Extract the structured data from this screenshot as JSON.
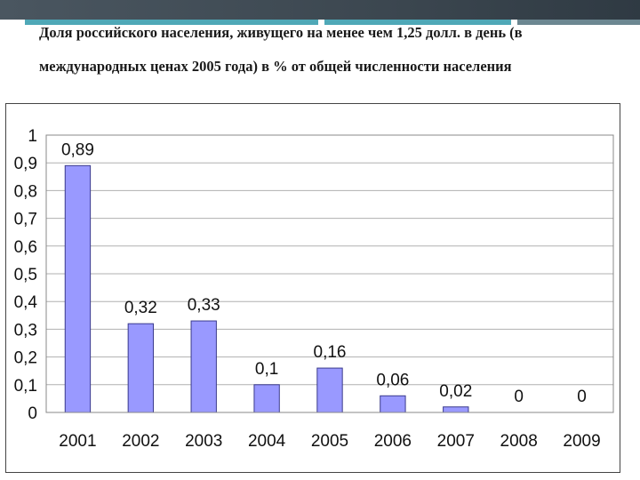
{
  "title": "Доля российского населения, живущего на менее чем 1,25 долл. в день (в международных ценах 2005 года) в % от общей численности населения",
  "colors": {
    "bar_fill": "#9999ff",
    "bar_stroke": "#3a3a8c",
    "grid": "#b0b0b0"
  },
  "chart_data": {
    "type": "bar",
    "title": "",
    "xlabel": "",
    "ylabel": "",
    "categories": [
      "2001",
      "2002",
      "2003",
      "2004",
      "2005",
      "2006",
      "2007",
      "2008",
      "2009"
    ],
    "values": [
      0.89,
      0.32,
      0.33,
      0.1,
      0.16,
      0.06,
      0.02,
      0,
      0
    ],
    "data_labels": [
      "0,89",
      "0,32",
      "0,33",
      "0,1",
      "0,16",
      "0,06",
      "0,02",
      "0",
      "0"
    ],
    "ylim": [
      0,
      1
    ],
    "yticks": [
      0,
      0.1,
      0.2,
      0.3,
      0.4,
      0.5,
      0.6,
      0.7,
      0.8,
      0.9,
      1
    ],
    "ytick_labels": [
      "0",
      "0,1",
      "0,2",
      "0,3",
      "0,4",
      "0,5",
      "0,6",
      "0,7",
      "0,8",
      "0,9",
      "1"
    ],
    "grid": true,
    "legend": "none"
  }
}
